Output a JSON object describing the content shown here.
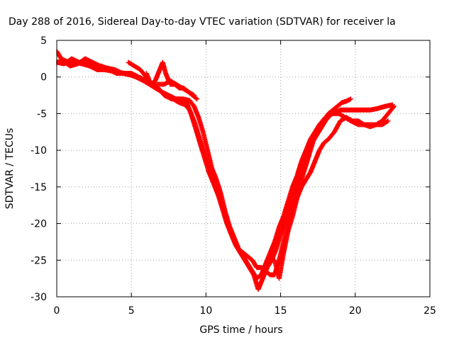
{
  "chart_data": {
    "type": "scatter",
    "title": "Day 288 of 2016, Sidereal Day-to-day VTEC variation (SDTVAR) for receiver la",
    "xlabel": "GPS time / hours",
    "ylabel": "SDTVAR / TECUs",
    "xlim": [
      0,
      25
    ],
    "ylim": [
      -30,
      5
    ],
    "x_ticks": [
      "0",
      "5",
      "10",
      "15",
      "20",
      "25"
    ],
    "y_ticks": [
      "5",
      "0",
      "-5",
      "-10",
      "-15",
      "-20",
      "-25",
      "-30"
    ],
    "grid": true,
    "marker": "+",
    "series_color": "#ff0000",
    "series": [
      {
        "x": [
          0.0,
          0.3,
          0.8,
          1.2,
          1.7,
          2.2,
          2.7,
          3.2,
          3.7,
          4.2,
          4.6,
          5.0,
          5.4,
          5.9,
          6.3,
          6.8,
          7.2,
          7.7,
          8.2,
          8.7,
          9.0,
          9.3,
          9.6,
          9.9,
          10.2,
          10.5,
          10.8,
          11.1,
          11.4,
          11.7,
          12.0,
          12.3,
          12.6,
          12.9,
          13.2,
          13.5,
          13.8,
          14.1,
          14.4,
          14.7,
          15.0,
          15.3,
          15.6,
          15.9,
          16.2,
          16.5,
          16.8,
          17.1,
          17.4,
          17.7,
          18.0,
          18.4,
          18.9,
          19.3,
          19.7,
          20.2,
          20.6,
          21.0,
          21.4,
          21.8,
          22.2,
          22.6
        ],
        "y": [
          3.5,
          2.5,
          2.0,
          2.0,
          1.8,
          1.5,
          1.0,
          1.0,
          0.8,
          0.6,
          0.5,
          0.3,
          0.0,
          -0.5,
          -1.0,
          -1.5,
          -2.5,
          -3.0,
          -3.0,
          -3.5,
          -5.0,
          -7.0,
          -9.0,
          -11.0,
          -13.0,
          -14.5,
          -16.0,
          -18.0,
          -20.0,
          -21.5,
          -23.0,
          -24.0,
          -25.0,
          -26.0,
          -27.0,
          -29.0,
          -27.5,
          -26.0,
          -25.0,
          -23.5,
          -21.5,
          -20.0,
          -18.0,
          -16.0,
          -14.0,
          -12.5,
          -10.5,
          -9.0,
          -8.0,
          -7.0,
          -6.0,
          -5.0,
          -5.0,
          -5.5,
          -6.0,
          -6.5,
          -6.5,
          -6.8,
          -6.5,
          -6.0,
          -5.0,
          -4.0
        ]
      },
      {
        "x": [
          0.0,
          0.4,
          0.9,
          1.4,
          1.9,
          2.4,
          2.9,
          3.4,
          3.9,
          4.4,
          4.9,
          5.3,
          5.8,
          6.2,
          6.6,
          7.0,
          7.4,
          7.8,
          8.2,
          8.6,
          8.9,
          9.2,
          9.5,
          9.8,
          10.1,
          10.4,
          10.7,
          11.0,
          11.3,
          11.6,
          11.9,
          12.2,
          12.5,
          12.8,
          13.1,
          13.4,
          13.7,
          14.0,
          14.3,
          14.6,
          14.9,
          15.2,
          15.5,
          15.8,
          16.1,
          16.4,
          16.7,
          17.0,
          17.3,
          17.6,
          18.0,
          18.5,
          19.0,
          19.5,
          20.0,
          20.5,
          21.0,
          21.5,
          22.0,
          22.5
        ],
        "y": [
          2.0,
          2.2,
          1.5,
          1.8,
          2.5,
          2.0,
          1.5,
          1.2,
          1.0,
          0.5,
          0.3,
          0.0,
          -0.5,
          -1.0,
          -1.5,
          -2.0,
          -2.5,
          -3.0,
          -3.5,
          -3.8,
          -4.5,
          -6.0,
          -8.0,
          -10.0,
          -12.0,
          -13.5,
          -15.5,
          -17.0,
          -19.0,
          -21.0,
          -22.5,
          -23.5,
          -24.5,
          -25.5,
          -26.5,
          -27.5,
          -27.0,
          -25.5,
          -24.0,
          -22.5,
          -20.5,
          -19.0,
          -17.0,
          -15.0,
          -13.5,
          -11.5,
          -10.0,
          -8.5,
          -7.5,
          -6.5,
          -5.5,
          -5.0,
          -4.5,
          -4.5,
          -4.5,
          -4.5,
          -4.5,
          -4.3,
          -4.0,
          -3.8
        ]
      },
      {
        "x": [
          0.0,
          0.5,
          1.0,
          1.5,
          2.0,
          2.5,
          3.0,
          3.5,
          4.0,
          4.5,
          5.0,
          5.5,
          6.0,
          6.5,
          7.0,
          7.5,
          8.0,
          8.5,
          8.9,
          9.2,
          9.5,
          9.8,
          10.1,
          10.4,
          10.7,
          11.0,
          11.3,
          11.6,
          11.9,
          12.2,
          12.5,
          12.8,
          13.1,
          13.4,
          13.7,
          14.0,
          14.3,
          14.6,
          14.9,
          15.2,
          15.5,
          15.8,
          16.1,
          16.4,
          16.7,
          17.0,
          17.3,
          17.6,
          17.9,
          18.2,
          18.6,
          19.0,
          19.4,
          19.8,
          20.2,
          20.6,
          21.0,
          21.4,
          21.8,
          22.2
        ],
        "y": [
          2.0,
          1.8,
          2.5,
          2.0,
          1.8,
          1.5,
          1.5,
          1.0,
          0.5,
          0.5,
          0.5,
          0.0,
          -0.5,
          -1.0,
          -2.0,
          -2.5,
          -3.0,
          -3.0,
          -3.2,
          -4.0,
          -5.5,
          -7.5,
          -10.0,
          -12.5,
          -14.0,
          -16.0,
          -18.5,
          -20.5,
          -22.0,
          -23.5,
          -24.0,
          -24.5,
          -25.0,
          -26.0,
          -26.0,
          -26.5,
          -27.0,
          -27.0,
          -25.0,
          -22.5,
          -20.0,
          -18.0,
          -16.5,
          -15.0,
          -14.0,
          -13.0,
          -11.5,
          -10.0,
          -9.0,
          -8.5,
          -7.5,
          -6.0,
          -5.5,
          -6.0,
          -6.0,
          -6.5,
          -6.5,
          -6.5,
          -6.5,
          -6.0
        ]
      },
      {
        "x": [
          4.8,
          5.2,
          5.6,
          6.0,
          6.4,
          6.8,
          7.2,
          7.6,
          8.0,
          8.4,
          8.8,
          9.2
        ],
        "y": [
          2.0,
          1.5,
          1.0,
          0.0,
          -1.0,
          -1.0,
          -1.0,
          -0.5,
          -1.0,
          -1.5,
          -2.0,
          -2.5
        ]
      },
      {
        "x": [
          6.0,
          6.3,
          6.6,
          6.9,
          7.1,
          7.3,
          7.6,
          7.9,
          8.2,
          8.5,
          8.8,
          9.1,
          9.4
        ],
        "y": [
          0.5,
          -1.0,
          -0.5,
          1.0,
          2.0,
          0.5,
          -1.0,
          -1.0,
          -1.5,
          -1.5,
          -2.0,
          -2.5,
          -3.0
        ]
      },
      {
        "x": [
          14.6,
          14.9,
          15.2,
          15.5,
          15.8,
          16.1,
          16.4,
          16.7,
          17.0,
          17.3,
          17.6,
          17.9,
          18.2,
          18.5,
          18.8,
          19.1,
          19.4,
          19.7
        ],
        "y": [
          -25.0,
          -27.5,
          -24.0,
          -21.0,
          -19.0,
          -16.5,
          -14.0,
          -12.0,
          -10.0,
          -8.0,
          -7.0,
          -6.0,
          -5.0,
          -4.5,
          -4.0,
          -3.5,
          -3.3,
          -3.0
        ]
      }
    ]
  }
}
